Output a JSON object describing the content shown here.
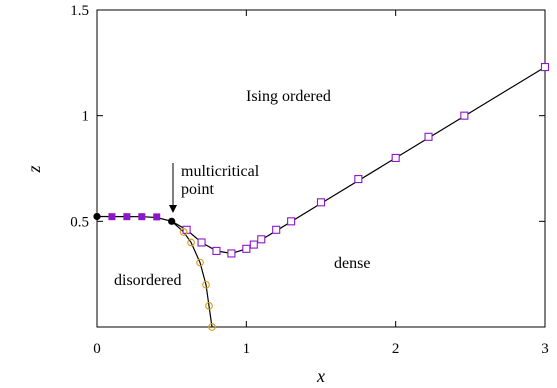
{
  "chart_data": {
    "type": "scatter",
    "xlabel": "x",
    "ylabel": "z",
    "xlim": [
      0,
      3
    ],
    "ylim": [
      0,
      1.5
    ],
    "xticks": [
      "0",
      "1",
      "2",
      "3"
    ],
    "yticks": [
      "0.5",
      "1",
      "1.5"
    ],
    "grid": false,
    "legend": "none",
    "annotations": [
      {
        "text_lines": [
          "multicritical",
          "point"
        ],
        "arrow_target": [
          0.5,
          0.5
        ]
      },
      {
        "text": "Ising ordered",
        "x": 1.5,
        "y": 1.07
      },
      {
        "text": "disordered",
        "x": 0.37,
        "y": 0.2
      },
      {
        "text": "dense",
        "x": 1.73,
        "y": 0.29
      }
    ],
    "series": [
      {
        "marker": "filled-square",
        "color": "#8b17c9",
        "points": [
          [
            0.1,
            0.522
          ],
          [
            0.2,
            0.522
          ],
          [
            0.3,
            0.522
          ],
          [
            0.4,
            0.521
          ]
        ]
      },
      {
        "marker": "filled-circle",
        "color": "#000000",
        "points": [
          [
            0.0,
            0.523
          ],
          [
            0.5,
            0.5
          ]
        ]
      },
      {
        "marker": "open-square",
        "color": "#8b17c9",
        "points": [
          [
            0.6,
            0.46
          ],
          [
            0.7,
            0.4
          ],
          [
            0.8,
            0.36
          ],
          [
            0.9,
            0.348
          ],
          [
            1.0,
            0.37
          ],
          [
            1.05,
            0.39
          ],
          [
            1.1,
            0.415
          ],
          [
            1.2,
            0.46
          ],
          [
            1.3,
            0.5
          ],
          [
            1.5,
            0.59
          ],
          [
            1.75,
            0.7
          ],
          [
            2.0,
            0.8
          ],
          [
            2.22,
            0.9
          ],
          [
            2.46,
            1.0
          ],
          [
            3.0,
            1.23
          ]
        ]
      },
      {
        "marker": "open-circle",
        "color": "#d89b1a",
        "points": [
          [
            0.58,
            0.45
          ],
          [
            0.63,
            0.4
          ],
          [
            0.69,
            0.305
          ],
          [
            0.73,
            0.2
          ],
          [
            0.75,
            0.1
          ],
          [
            0.77,
            0.0
          ]
        ]
      },
      {
        "type": "line",
        "color": "#000000",
        "points": [
          [
            0.0,
            0.523
          ],
          [
            0.3,
            0.522
          ],
          [
            0.4,
            0.518
          ],
          [
            0.5,
            0.5
          ],
          [
            0.6,
            0.46
          ],
          [
            0.7,
            0.4
          ],
          [
            0.8,
            0.36
          ],
          [
            0.9,
            0.348
          ],
          [
            1.0,
            0.37
          ],
          [
            1.2,
            0.455
          ],
          [
            1.5,
            0.585
          ],
          [
            2.0,
            0.8
          ],
          [
            2.5,
            1.015
          ],
          [
            3.0,
            1.23
          ]
        ]
      },
      {
        "type": "line",
        "color": "#000000",
        "points": [
          [
            0.5,
            0.5
          ],
          [
            0.58,
            0.45
          ],
          [
            0.63,
            0.4
          ],
          [
            0.69,
            0.305
          ],
          [
            0.73,
            0.2
          ],
          [
            0.75,
            0.1
          ],
          [
            0.77,
            0.0
          ]
        ]
      }
    ]
  }
}
